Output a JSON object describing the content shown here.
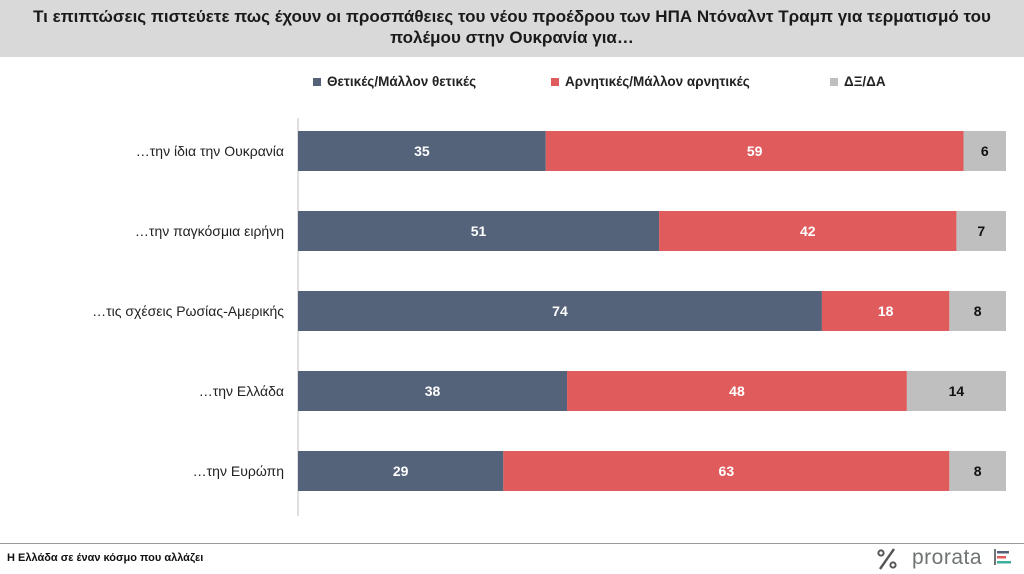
{
  "header": {
    "title": "Τι επιπτώσεις πιστεύετε πως έχουν οι προσπάθειες του νέου προέδρου των ΗΠΑ Ντόναλντ Τραμπ για τερματισμό του πολέμου στην Ουκρανία για…"
  },
  "legend": {
    "positive": "Θετικές/Μάλλον  θετικές",
    "negative": "Αρνητικές/Μάλλον  αρνητικές",
    "dk": "ΔΞ/ΔΑ"
  },
  "colors": {
    "positive": "#54627a",
    "negative": "#e05c5c",
    "dk": "#bfbfbf",
    "header_bg": "#d9d9d9"
  },
  "chart_data": {
    "type": "bar",
    "orientation": "horizontal",
    "stacked": true,
    "categories": [
      "…την ίδια την Ουκρανία",
      "…την παγκόσμια ειρήνη",
      "…τις σχέσεις Ρωσίας-Αμερικής",
      "…την Ελλάδα",
      "…την Ευρώπη"
    ],
    "series": [
      {
        "name": "Θετικές/Μάλλον  θετικές",
        "values": [
          35,
          51,
          74,
          38,
          29
        ]
      },
      {
        "name": "Αρνητικές/Μάλλον  αρνητικές",
        "values": [
          59,
          42,
          18,
          48,
          63
        ]
      },
      {
        "name": "ΔΞ/ΔΑ",
        "values": [
          6,
          7,
          8,
          14,
          8
        ]
      }
    ],
    "xlim": [
      0,
      100
    ],
    "grid": false,
    "legend_position": "top"
  },
  "footer": {
    "text": "Η Ελλάδα σε έναν κόσμο που αλλάζει",
    "logo_text": "prorata"
  }
}
